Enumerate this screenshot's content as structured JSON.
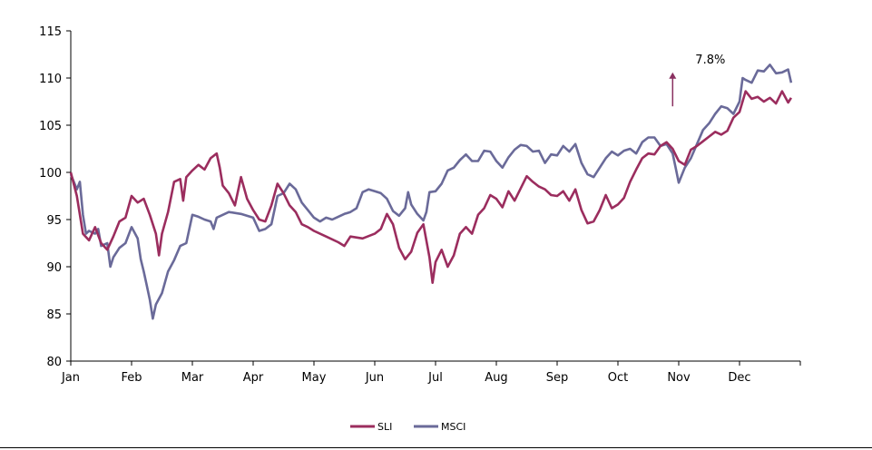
{
  "chart_data": {
    "type": "line",
    "title": "",
    "xlabel": "",
    "ylabel": "",
    "ylim": [
      80,
      115
    ],
    "yticks": [
      80,
      85,
      90,
      95,
      100,
      105,
      110,
      115
    ],
    "x_range": [
      0,
      12
    ],
    "month_labels": [
      "Jan",
      "Feb",
      "Mar",
      "Apr",
      "May",
      "Jun",
      "Jul",
      "Aug",
      "Sep",
      "Oct",
      "Nov",
      "Dec"
    ],
    "grid": false,
    "legend_position": "bottom-center",
    "annotation": {
      "text": "7.8%",
      "arrow": "up",
      "color": "#8a3060",
      "x": 9.9,
      "y_from": 107,
      "y_to": 110.6,
      "text_y": 112
    },
    "series": [
      {
        "name": "SLI",
        "color": "#9b2d5e",
        "points": [
          [
            0.0,
            100
          ],
          [
            0.1,
            97.5
          ],
          [
            0.2,
            93.5
          ],
          [
            0.3,
            92.8
          ],
          [
            0.4,
            94.2
          ],
          [
            0.5,
            92.5
          ],
          [
            0.6,
            91.8
          ],
          [
            0.7,
            93.2
          ],
          [
            0.8,
            94.8
          ],
          [
            0.9,
            95.2
          ],
          [
            1.0,
            97.5
          ],
          [
            1.1,
            96.8
          ],
          [
            1.2,
            97.2
          ],
          [
            1.3,
            95.5
          ],
          [
            1.4,
            93.5
          ],
          [
            1.45,
            91.2
          ],
          [
            1.5,
            93.5
          ],
          [
            1.6,
            95.8
          ],
          [
            1.7,
            99.0
          ],
          [
            1.8,
            99.3
          ],
          [
            1.85,
            97.0
          ],
          [
            1.9,
            99.5
          ],
          [
            2.0,
            100.2
          ],
          [
            2.1,
            100.8
          ],
          [
            2.2,
            100.3
          ],
          [
            2.3,
            101.5
          ],
          [
            2.4,
            102.0
          ],
          [
            2.45,
            100.5
          ],
          [
            2.5,
            98.6
          ],
          [
            2.6,
            97.8
          ],
          [
            2.7,
            96.5
          ],
          [
            2.8,
            99.5
          ],
          [
            2.9,
            97.2
          ],
          [
            3.0,
            96.0
          ],
          [
            3.1,
            95.0
          ],
          [
            3.2,
            94.8
          ],
          [
            3.3,
            96.5
          ],
          [
            3.4,
            98.8
          ],
          [
            3.5,
            97.8
          ],
          [
            3.6,
            96.5
          ],
          [
            3.7,
            95.8
          ],
          [
            3.8,
            94.5
          ],
          [
            3.9,
            94.2
          ],
          [
            4.0,
            93.8
          ],
          [
            4.2,
            93.2
          ],
          [
            4.4,
            92.6
          ],
          [
            4.5,
            92.2
          ],
          [
            4.6,
            93.2
          ],
          [
            4.8,
            93.0
          ],
          [
            5.0,
            93.5
          ],
          [
            5.1,
            94.0
          ],
          [
            5.2,
            95.6
          ],
          [
            5.3,
            94.5
          ],
          [
            5.4,
            92.0
          ],
          [
            5.5,
            90.8
          ],
          [
            5.6,
            91.6
          ],
          [
            5.7,
            93.6
          ],
          [
            5.8,
            94.5
          ],
          [
            5.9,
            91.0
          ],
          [
            5.95,
            88.3
          ],
          [
            6.0,
            90.5
          ],
          [
            6.1,
            91.8
          ],
          [
            6.2,
            90.0
          ],
          [
            6.3,
            91.2
          ],
          [
            6.4,
            93.5
          ],
          [
            6.5,
            94.2
          ],
          [
            6.6,
            93.5
          ],
          [
            6.7,
            95.5
          ],
          [
            6.8,
            96.2
          ],
          [
            6.9,
            97.6
          ],
          [
            7.0,
            97.2
          ],
          [
            7.1,
            96.3
          ],
          [
            7.2,
            98.0
          ],
          [
            7.3,
            97.0
          ],
          [
            7.4,
            98.3
          ],
          [
            7.5,
            99.6
          ],
          [
            7.6,
            99.0
          ],
          [
            7.7,
            98.5
          ],
          [
            7.8,
            98.2
          ],
          [
            7.9,
            97.6
          ],
          [
            8.0,
            97.5
          ],
          [
            8.1,
            98.0
          ],
          [
            8.2,
            97.0
          ],
          [
            8.3,
            98.2
          ],
          [
            8.4,
            96.0
          ],
          [
            8.5,
            94.6
          ],
          [
            8.6,
            94.8
          ],
          [
            8.7,
            96.0
          ],
          [
            8.8,
            97.6
          ],
          [
            8.9,
            96.2
          ],
          [
            9.0,
            96.6
          ],
          [
            9.1,
            97.3
          ],
          [
            9.2,
            99.0
          ],
          [
            9.3,
            100.3
          ],
          [
            9.4,
            101.5
          ],
          [
            9.5,
            102.0
          ],
          [
            9.6,
            101.9
          ],
          [
            9.7,
            102.8
          ],
          [
            9.8,
            103.2
          ],
          [
            9.9,
            102.5
          ],
          [
            10.0,
            101.2
          ],
          [
            10.1,
            100.8
          ],
          [
            10.2,
            102.4
          ],
          [
            10.3,
            102.8
          ],
          [
            10.4,
            103.3
          ],
          [
            10.5,
            103.8
          ],
          [
            10.6,
            104.3
          ],
          [
            10.7,
            104.0
          ],
          [
            10.8,
            104.4
          ],
          [
            10.9,
            105.8
          ],
          [
            11.0,
            106.4
          ],
          [
            11.1,
            108.6
          ],
          [
            11.2,
            107.8
          ],
          [
            11.3,
            108.0
          ],
          [
            11.4,
            107.5
          ],
          [
            11.5,
            107.9
          ],
          [
            11.6,
            107.3
          ],
          [
            11.7,
            108.6
          ],
          [
            11.8,
            107.4
          ],
          [
            11.85,
            107.9
          ]
        ]
      },
      {
        "name": "MSCI",
        "color": "#6a6a99",
        "points": [
          [
            0.0,
            99.8
          ],
          [
            0.1,
            98.2
          ],
          [
            0.15,
            99.0
          ],
          [
            0.2,
            95.5
          ],
          [
            0.25,
            93.5
          ],
          [
            0.3,
            93.8
          ],
          [
            0.4,
            93.5
          ],
          [
            0.45,
            94.0
          ],
          [
            0.5,
            92.2
          ],
          [
            0.6,
            92.5
          ],
          [
            0.65,
            90.0
          ],
          [
            0.7,
            91.0
          ],
          [
            0.8,
            92.0
          ],
          [
            0.9,
            92.5
          ],
          [
            1.0,
            94.2
          ],
          [
            1.1,
            93.0
          ],
          [
            1.15,
            90.8
          ],
          [
            1.2,
            89.5
          ],
          [
            1.25,
            88.0
          ],
          [
            1.3,
            86.5
          ],
          [
            1.35,
            84.5
          ],
          [
            1.4,
            86.0
          ],
          [
            1.5,
            87.2
          ],
          [
            1.6,
            89.5
          ],
          [
            1.7,
            90.7
          ],
          [
            1.8,
            92.2
          ],
          [
            1.9,
            92.5
          ],
          [
            2.0,
            95.5
          ],
          [
            2.1,
            95.3
          ],
          [
            2.2,
            95.0
          ],
          [
            2.3,
            94.8
          ],
          [
            2.35,
            94.0
          ],
          [
            2.4,
            95.2
          ],
          [
            2.5,
            95.5
          ],
          [
            2.6,
            95.8
          ],
          [
            2.8,
            95.6
          ],
          [
            3.0,
            95.2
          ],
          [
            3.1,
            93.8
          ],
          [
            3.2,
            94.0
          ],
          [
            3.3,
            94.5
          ],
          [
            3.4,
            97.5
          ],
          [
            3.5,
            97.8
          ],
          [
            3.6,
            98.8
          ],
          [
            3.7,
            98.2
          ],
          [
            3.8,
            96.8
          ],
          [
            3.9,
            96.0
          ],
          [
            4.0,
            95.2
          ],
          [
            4.1,
            94.8
          ],
          [
            4.2,
            95.2
          ],
          [
            4.3,
            95.0
          ],
          [
            4.4,
            95.3
          ],
          [
            4.5,
            95.6
          ],
          [
            4.6,
            95.8
          ],
          [
            4.7,
            96.2
          ],
          [
            4.8,
            97.9
          ],
          [
            4.9,
            98.2
          ],
          [
            5.0,
            98.0
          ],
          [
            5.1,
            97.8
          ],
          [
            5.2,
            97.2
          ],
          [
            5.3,
            95.9
          ],
          [
            5.4,
            95.4
          ],
          [
            5.5,
            96.2
          ],
          [
            5.55,
            97.9
          ],
          [
            5.6,
            96.6
          ],
          [
            5.7,
            95.6
          ],
          [
            5.8,
            94.9
          ],
          [
            5.85,
            95.8
          ],
          [
            5.9,
            97.9
          ],
          [
            6.0,
            98.0
          ],
          [
            6.1,
            98.8
          ],
          [
            6.2,
            100.2
          ],
          [
            6.3,
            100.5
          ],
          [
            6.4,
            101.3
          ],
          [
            6.5,
            101.9
          ],
          [
            6.6,
            101.2
          ],
          [
            6.7,
            101.2
          ],
          [
            6.8,
            102.3
          ],
          [
            6.9,
            102.2
          ],
          [
            7.0,
            101.2
          ],
          [
            7.1,
            100.5
          ],
          [
            7.2,
            101.6
          ],
          [
            7.3,
            102.4
          ],
          [
            7.4,
            102.9
          ],
          [
            7.5,
            102.8
          ],
          [
            7.6,
            102.2
          ],
          [
            7.7,
            102.3
          ],
          [
            7.8,
            101.0
          ],
          [
            7.9,
            101.9
          ],
          [
            8.0,
            101.8
          ],
          [
            8.1,
            102.8
          ],
          [
            8.2,
            102.2
          ],
          [
            8.3,
            103.0
          ],
          [
            8.4,
            101.0
          ],
          [
            8.5,
            99.8
          ],
          [
            8.6,
            99.5
          ],
          [
            8.7,
            100.5
          ],
          [
            8.8,
            101.5
          ],
          [
            8.9,
            102.2
          ],
          [
            9.0,
            101.8
          ],
          [
            9.1,
            102.3
          ],
          [
            9.2,
            102.5
          ],
          [
            9.3,
            102.0
          ],
          [
            9.4,
            103.2
          ],
          [
            9.5,
            103.7
          ],
          [
            9.6,
            103.7
          ],
          [
            9.7,
            102.8
          ],
          [
            9.8,
            103.0
          ],
          [
            9.9,
            102.0
          ],
          [
            9.95,
            100.5
          ],
          [
            10.0,
            98.9
          ],
          [
            10.1,
            100.5
          ],
          [
            10.2,
            101.5
          ],
          [
            10.3,
            103.0
          ],
          [
            10.4,
            104.5
          ],
          [
            10.5,
            105.2
          ],
          [
            10.6,
            106.2
          ],
          [
            10.7,
            107.0
          ],
          [
            10.8,
            106.8
          ],
          [
            10.9,
            106.2
          ],
          [
            11.0,
            107.5
          ],
          [
            11.05,
            110.0
          ],
          [
            11.1,
            109.8
          ],
          [
            11.2,
            109.5
          ],
          [
            11.3,
            110.8
          ],
          [
            11.4,
            110.7
          ],
          [
            11.5,
            111.4
          ],
          [
            11.6,
            110.5
          ],
          [
            11.7,
            110.6
          ],
          [
            11.8,
            110.9
          ],
          [
            11.85,
            109.5
          ]
        ]
      }
    ]
  }
}
